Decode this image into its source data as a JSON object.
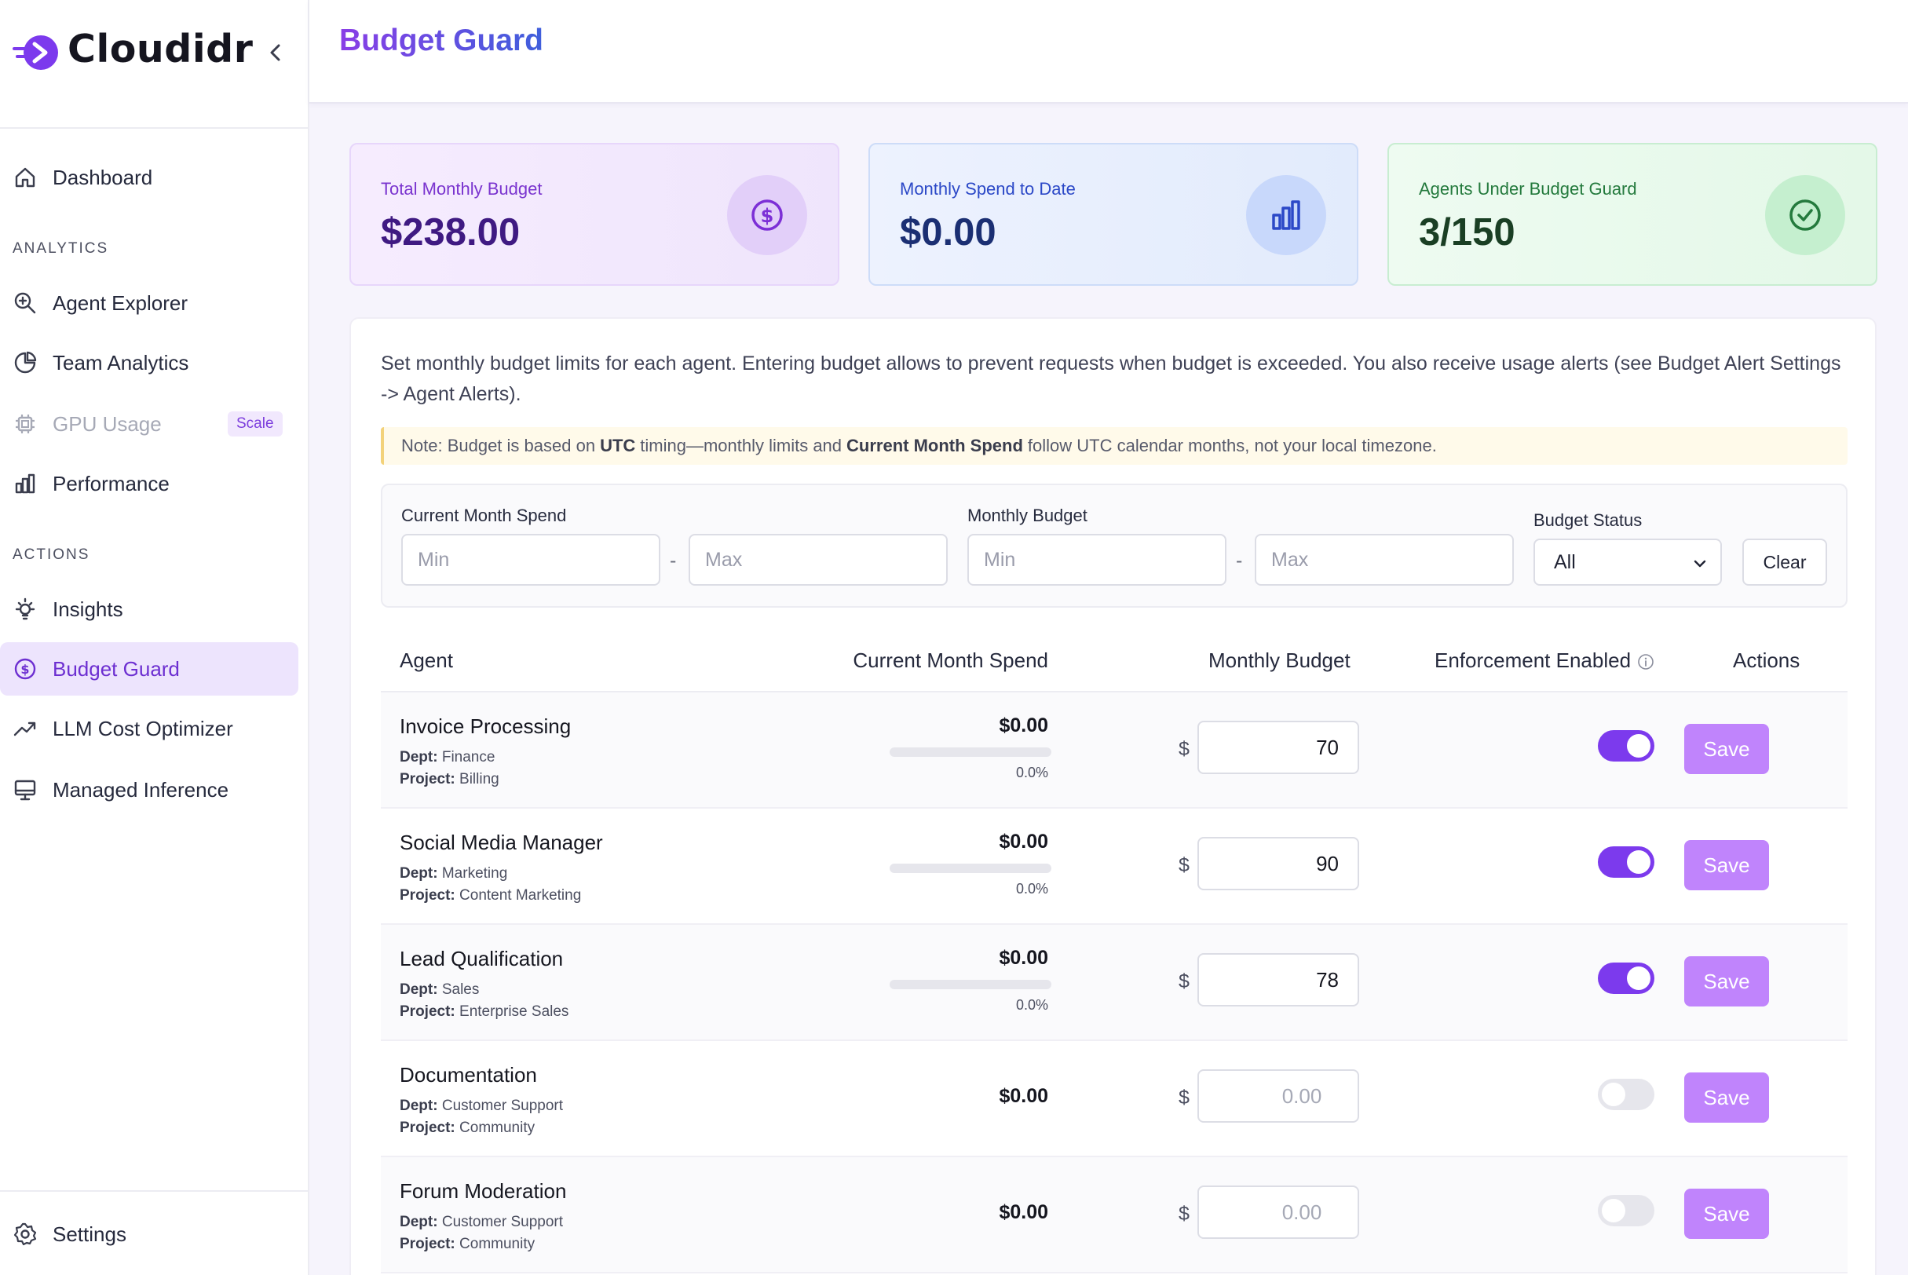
{
  "app": {
    "name": "Cloudidr",
    "page_title": "Budget Guard"
  },
  "sidebar": {
    "items": [
      {
        "label": "Dashboard",
        "icon": "home-icon"
      },
      {
        "label": "Agent Explorer",
        "icon": "search-zoom-icon"
      },
      {
        "label": "Team Analytics",
        "icon": "pie-chart-icon"
      },
      {
        "label": "GPU Usage",
        "icon": "chip-icon",
        "badge": "Scale"
      },
      {
        "label": "Performance",
        "icon": "bar-chart-icon"
      },
      {
        "label": "Insights",
        "icon": "lightbulb-icon"
      },
      {
        "label": "Budget Guard",
        "icon": "dollar-circle-icon"
      },
      {
        "label": "LLM Cost Optimizer",
        "icon": "trending-up-icon"
      },
      {
        "label": "Managed Inference",
        "icon": "monitor-icon"
      }
    ],
    "sections": {
      "analytics": "ANALYTICS",
      "actions": "ACTIONS"
    },
    "settings": "Settings"
  },
  "stats": {
    "total_budget": {
      "label": "Total Monthly Budget",
      "value": "$238.00"
    },
    "spend_to_date": {
      "label": "Monthly Spend to Date",
      "value": "$0.00"
    },
    "agents_guarded": {
      "label": "Agents Under Budget Guard",
      "value": "3/150"
    }
  },
  "description": "Set monthly budget limits for each agent. Entering budget allows to prevent requests when budget is exceeded. You also receive usage alerts (see Budget Alert Settings -> Agent Alerts).",
  "note": {
    "prefix": "Note: Budget is based on",
    "bold1": "UTC",
    "middle": "timing—monthly limits and",
    "bold2": "Current Month Spend",
    "suffix": "follow UTC calendar months, not your local timezone."
  },
  "filters": {
    "spend_label": "Current Month Spend",
    "budget_label": "Monthly Budget",
    "status_label": "Budget Status",
    "min_placeholder": "Min",
    "max_placeholder": "Max",
    "dash": "-",
    "status_value": "All",
    "clear": "Clear"
  },
  "table": {
    "headers": {
      "agent": "Agent",
      "spend": "Current Month Spend",
      "budget": "Monthly Budget",
      "enforcement": "Enforcement Enabled",
      "actions": "Actions"
    },
    "dept_key": "Dept:",
    "project_key": "Project:",
    "currency": "$",
    "save": "Save",
    "rows": [
      {
        "name": "Invoice Processing",
        "dept": "Finance",
        "project": "Billing",
        "spend": "$0.00",
        "percent": "0.0%",
        "spend_fraction": 0,
        "budget": "70",
        "enforcement": true
      },
      {
        "name": "Social Media Manager",
        "dept": "Marketing",
        "project": "Content Marketing",
        "spend": "$0.00",
        "percent": "0.0%",
        "spend_fraction": 0,
        "budget": "90",
        "enforcement": true
      },
      {
        "name": "Lead Qualification",
        "dept": "Sales",
        "project": "Enterprise Sales",
        "spend": "$0.00",
        "percent": "0.0%",
        "spend_fraction": 0,
        "budget": "78",
        "enforcement": true
      },
      {
        "name": "Documentation",
        "dept": "Customer Support",
        "project": "Community",
        "spend": "$0.00",
        "budget_placeholder": "0.00",
        "enforcement": false
      },
      {
        "name": "Forum Moderation",
        "dept": "Customer Support",
        "project": "Community",
        "spend": "$0.00",
        "budget_placeholder": "0.00",
        "enforcement": false
      }
    ]
  },
  "colors": {
    "accent": "#7c3aed",
    "save_button": "#c084fc",
    "active_nav_bg": "#ede4fd"
  }
}
